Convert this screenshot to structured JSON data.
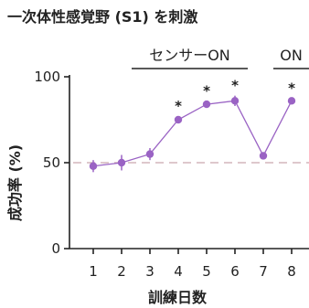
{
  "chart_data": {
    "type": "line",
    "title": "一次体性感覚野 (S1) を刺激",
    "xlabel": "訓練日数",
    "ylabel": "成功率 (%)",
    "x": [
      1,
      2,
      3,
      4,
      5,
      6,
      7,
      8
    ],
    "x_tick_labels": [
      "1",
      "2",
      "3",
      "4",
      "5",
      "6",
      "7",
      "8"
    ],
    "ylim": [
      0,
      100
    ],
    "y_ticks": [
      0,
      50,
      100
    ],
    "y_tick_labels": [
      "0",
      "50",
      "100"
    ],
    "series": [
      {
        "values": [
          48,
          50,
          55,
          75,
          84,
          86,
          54,
          86
        ],
        "errors": [
          3.5,
          4.5,
          3.5,
          2.0,
          2.0,
          3.0,
          2.0,
          1.5
        ],
        "color": "#9a63c4"
      }
    ],
    "reference_line": {
      "y": 50,
      "style": "dashed",
      "color": "#c9a7ae"
    },
    "significance_marks": [
      {
        "x": 4,
        "label": "*"
      },
      {
        "x": 5,
        "label": "*"
      },
      {
        "x": 6,
        "label": "*"
      },
      {
        "x": 8,
        "label": "*"
      }
    ],
    "condition_brackets": [
      {
        "label": "センサーON",
        "from_x": 3,
        "to_x": 6
      },
      {
        "label": "ON",
        "from_x": 8,
        "to_x": 8
      }
    ],
    "grid": false,
    "legend": "none"
  }
}
